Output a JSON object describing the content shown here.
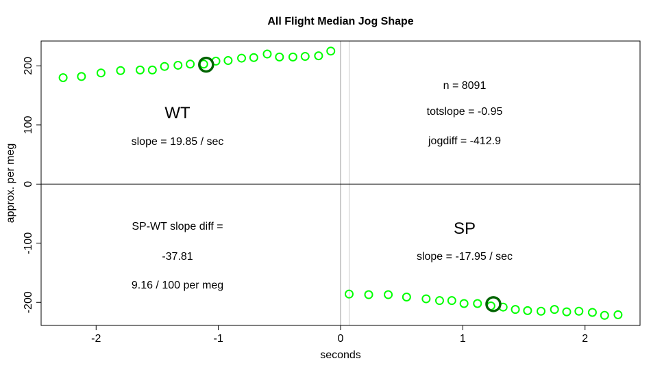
{
  "chart_data": {
    "type": "scatter",
    "title": "All Flight Median Jog Shape",
    "xlabel": "seconds",
    "ylabel": "approx. per meg",
    "xlim": [
      -2.45,
      2.45
    ],
    "ylim": [
      -239,
      242
    ],
    "xticks": [
      -2,
      -1,
      0,
      1,
      2
    ],
    "yticks": [
      -200,
      -100,
      0,
      100,
      200
    ],
    "grid": false,
    "point_color": "#00ff00",
    "highlight_color": "#006400",
    "reference_lines": {
      "vertical": [
        0,
        0.07
      ],
      "horizontal": [
        0
      ]
    },
    "series": [
      {
        "x": [
          -2.27,
          -2.12,
          -1.96,
          -1.8,
          -1.64,
          -1.54,
          -1.44,
          -1.33,
          -1.23,
          -1.12,
          -1.02,
          -0.92,
          -0.81,
          -0.71,
          -0.6,
          -0.5,
          -0.39,
          -0.29,
          -0.18,
          -0.08
        ],
        "y": [
          180,
          182,
          188,
          192,
          193,
          193,
          199,
          201,
          203,
          203,
          208,
          209,
          213,
          214,
          220,
          215,
          215,
          216,
          217,
          225
        ]
      },
      {
        "x": [
          0.07,
          0.23,
          0.39,
          0.54,
          0.7,
          0.81,
          0.91,
          1.01,
          1.12,
          1.23,
          1.33,
          1.43,
          1.53,
          1.64,
          1.75,
          1.85,
          1.95,
          2.06,
          2.16,
          2.27
        ],
        "y": [
          -186,
          -187,
          -187,
          -191,
          -194,
          -197,
          -197,
          -202,
          -202,
          -206,
          -208,
          -212,
          -214,
          -215,
          -212,
          -216,
          -215,
          -217,
          -222,
          -221
        ]
      }
    ],
    "highlights": [
      {
        "x": -1.1,
        "y": 202
      },
      {
        "x": 1.25,
        "y": -203
      }
    ],
    "annotations": {
      "wt_label": "WT",
      "wt_slope": "slope = 19.85 / sec",
      "n": "n = 8091",
      "totslope": "totslope = -0.95",
      "jogdiff": "jogdiff = -412.9",
      "sp_label": "SP",
      "sp_slope": "slope = -17.95 / sec",
      "diff_label": "SP-WT slope diff =",
      "diff_value": "-37.81",
      "diff_per_meg": "9.16 / 100 per meg"
    }
  }
}
